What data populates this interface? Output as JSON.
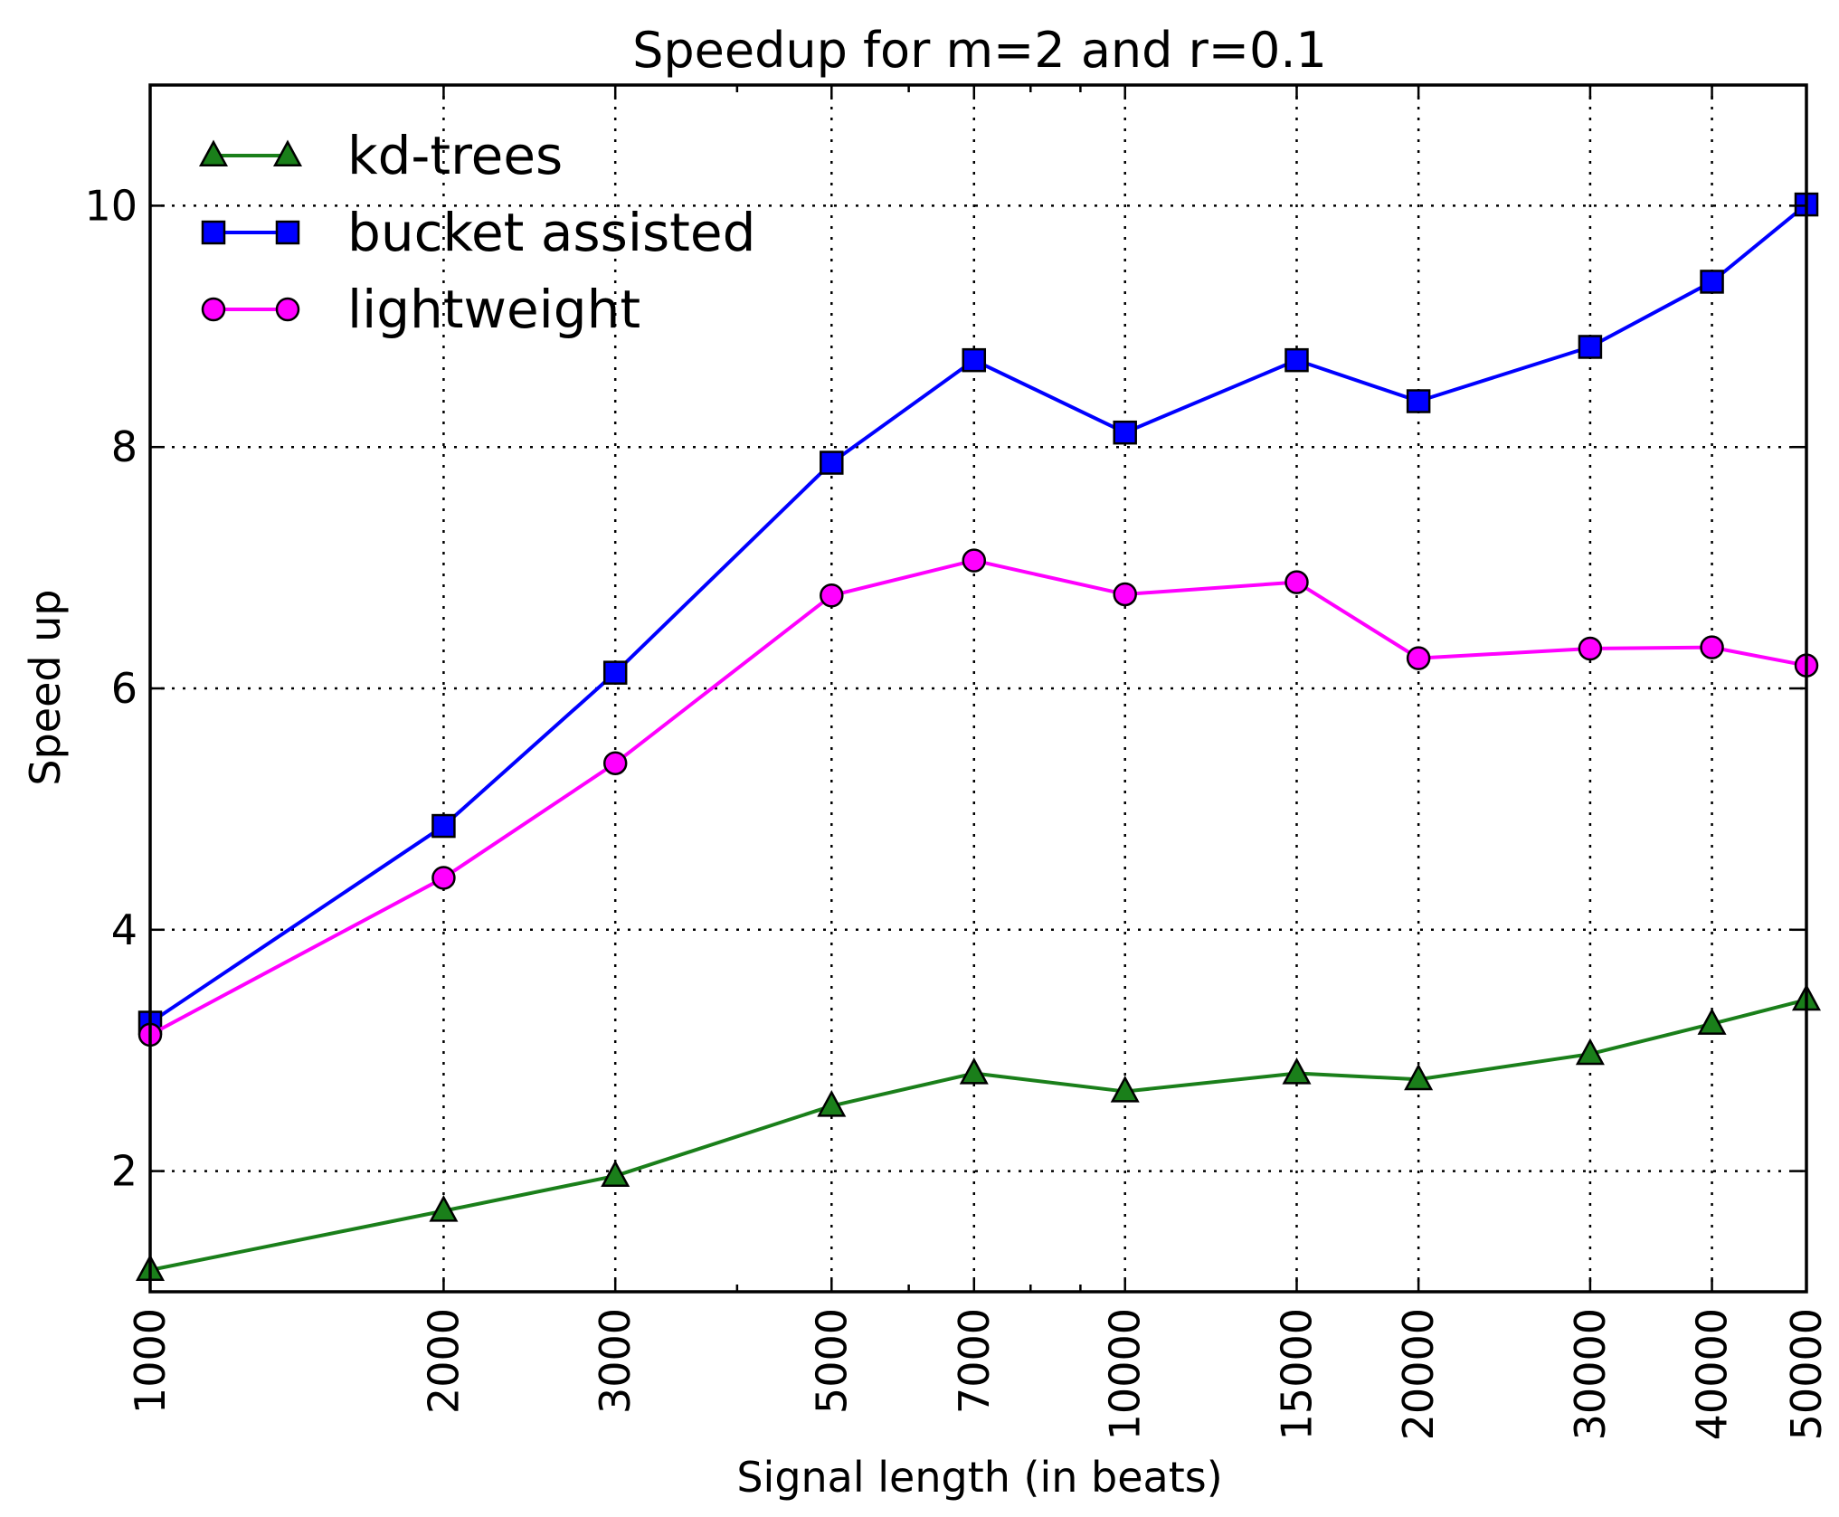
{
  "chart_data": {
    "type": "line",
    "title": "Speedup for m=2 and r=0.1",
    "xlabel": "Signal length (in beats)",
    "ylabel": "Speed up",
    "xscale": "log",
    "xlim": [
      1000,
      50000
    ],
    "ylim": [
      1.0,
      11.0
    ],
    "grid": true,
    "legend_position": "top-left",
    "x": [
      1000,
      2000,
      3000,
      5000,
      7000,
      10000,
      15000,
      20000,
      30000,
      40000,
      50000
    ],
    "x_tick_labels": [
      "1000",
      "2000",
      "3000",
      "5000",
      "7000",
      "10000",
      "15000",
      "20000",
      "30000",
      "40000",
      "50000"
    ],
    "y_ticks": [
      2,
      4,
      6,
      8,
      10
    ],
    "y_tick_labels": [
      "2",
      "4",
      "6",
      "8",
      "10"
    ],
    "series": [
      {
        "name": "kd-trees",
        "marker": "triangle",
        "color": "#1a7f1a",
        "values": [
          1.18,
          1.67,
          1.96,
          2.54,
          2.81,
          2.66,
          2.81,
          2.76,
          2.97,
          3.22,
          3.42
        ]
      },
      {
        "name": "bucket assisted",
        "marker": "square",
        "color": "#0000ff",
        "values": [
          3.23,
          4.86,
          6.13,
          7.87,
          8.72,
          8.12,
          8.72,
          8.38,
          8.83,
          9.37,
          10.01
        ]
      },
      {
        "name": "lightweight",
        "marker": "circle",
        "color": "#ff00ff",
        "values": [
          3.13,
          4.43,
          5.38,
          6.77,
          7.06,
          6.78,
          6.88,
          6.25,
          6.33,
          6.34,
          6.19
        ]
      }
    ]
  }
}
